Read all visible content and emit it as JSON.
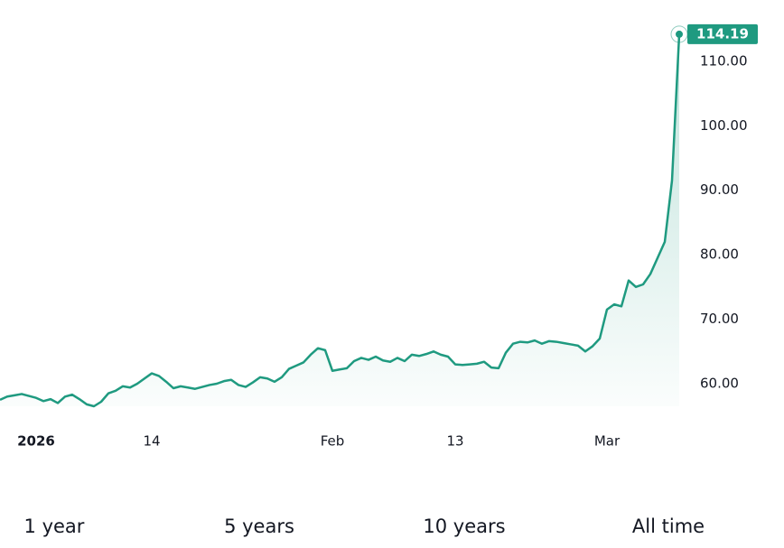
{
  "chart_data": {
    "type": "line",
    "categories": [
      null,
      null,
      null,
      null,
      null,
      "2026",
      null,
      null,
      null,
      null,
      null,
      null,
      null,
      null,
      null,
      null,
      null,
      null,
      null,
      null,
      null,
      "14",
      null,
      null,
      null,
      null,
      null,
      null,
      null,
      null,
      null,
      null,
      null,
      null,
      null,
      null,
      null,
      null,
      null,
      null,
      null,
      null,
      null,
      null,
      null,
      null,
      "Feb",
      null,
      null,
      null,
      null,
      null,
      null,
      null,
      null,
      null,
      null,
      null,
      null,
      null,
      null,
      null,
      null,
      "13",
      null,
      null,
      null,
      null,
      null,
      null,
      null,
      null,
      null,
      null,
      null,
      null,
      null,
      null,
      null,
      null,
      null,
      null,
      null,
      null,
      "Mar",
      null,
      null,
      null,
      null,
      null,
      null,
      null,
      null,
      null,
      null
    ],
    "series": [
      {
        "color": "#1f9a80",
        "values": [
          57.5,
          58,
          58.2,
          58.4,
          58.1,
          57.8,
          57.3,
          57.6,
          57,
          58,
          58.3,
          57.6,
          56.8,
          56.5,
          57.2,
          58.5,
          58.9,
          59.6,
          59.4,
          60,
          60.8,
          61.6,
          61.2,
          60.3,
          59.3,
          59.6,
          59.4,
          59.2,
          59.5,
          59.8,
          60,
          60.4,
          60.6,
          59.8,
          59.5,
          60.2,
          61,
          60.8,
          60.3,
          61,
          62.3,
          62.8,
          63.3,
          64.5,
          65.5,
          65.2,
          62,
          62.2,
          62.4,
          63.5,
          64,
          63.7,
          64.2,
          63.6,
          63.4,
          64,
          63.5,
          64.5,
          64.3,
          64.6,
          65,
          64.5,
          64.2,
          63,
          62.9,
          63,
          63.1,
          63.4,
          62.5,
          62.4,
          64.8,
          66.2,
          66.5,
          66.4,
          66.7,
          66.2,
          66.6,
          66.5,
          66.3,
          66.1,
          65.9,
          65,
          65.8,
          67,
          71.5,
          72.3,
          72,
          76,
          75,
          75.4,
          77,
          79.5,
          82,
          91.5,
          114.19
        ]
      }
    ],
    "ylim": [
      56.5,
      115.3
    ],
    "yticks": [
      {
        "value": 60,
        "label": "60.00"
      },
      {
        "value": 70,
        "label": "70.00"
      },
      {
        "value": 80,
        "label": "80.00"
      },
      {
        "value": 90,
        "label": "90.00"
      },
      {
        "value": 100,
        "label": "100.00"
      },
      {
        "value": 110,
        "label": "110.00"
      }
    ]
  },
  "range_buttons": [
    "1 year",
    "5 years",
    "10 years",
    "All time"
  ]
}
